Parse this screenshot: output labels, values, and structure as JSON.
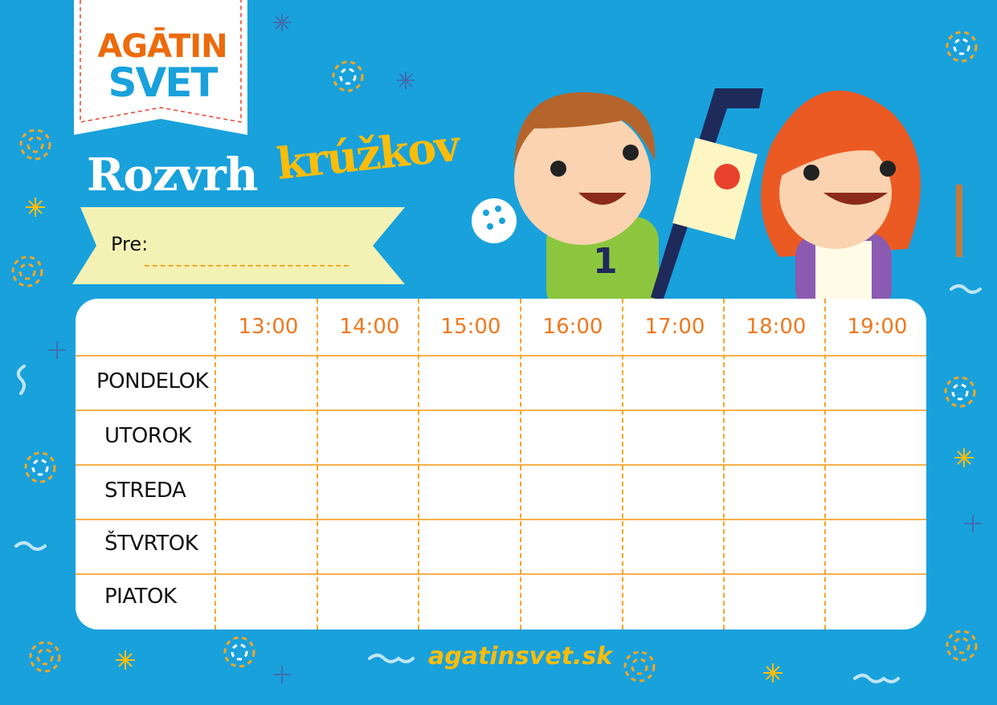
{
  "logo": {
    "line1": "AGĀTIN",
    "line2": "SVET"
  },
  "title": {
    "part1": "Rozvrh",
    "part2": "krúžkov"
  },
  "name_field": {
    "label": "Pre:",
    "value": ""
  },
  "schedule": {
    "times": [
      "13:00",
      "14:00",
      "15:00",
      "16:00",
      "17:00",
      "18:00",
      "19:00"
    ],
    "days": [
      "PONDELOK",
      "UTOROK",
      "STREDA",
      "ŠTVRTOK",
      "PIATOK"
    ]
  },
  "footer": {
    "url": "agatinsvet.sk"
  },
  "colors": {
    "background": "#19a1dc",
    "accent_yellow": "#fbbd0a",
    "accent_orange": "#f0781e",
    "ribbon": "#f3f2b4"
  }
}
